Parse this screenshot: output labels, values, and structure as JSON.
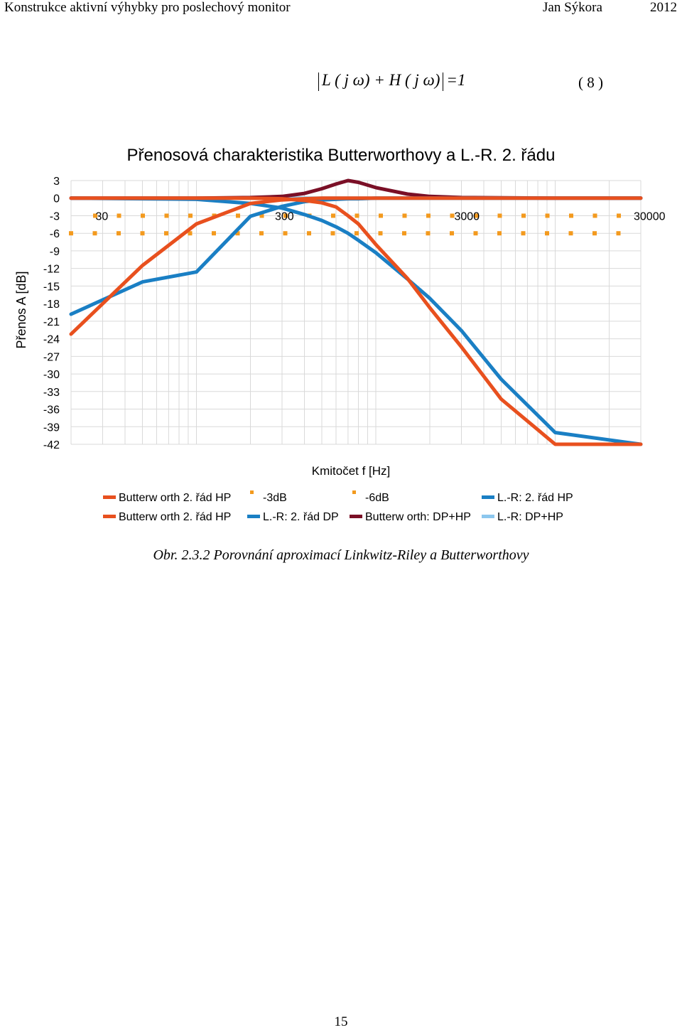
{
  "header": {
    "title": "Konstrukce aktivní výhybky pro poslechový monitor",
    "author": "Jan Sýkora",
    "year": "2012"
  },
  "equation": {
    "text": "L ( j ω) + H ( j ω) = 1",
    "lhs_l": "L ( j ω) + H ( j ω)",
    "rhs": "=1",
    "number": "( 8 )"
  },
  "chart_data": {
    "type": "line",
    "title": "Přenosová charakteristika Butterworthovy a L.-R. 2. řádu",
    "xlabel": "Kmitočet f [Hz]",
    "ylabel": "Přenos A [dB]",
    "xscale": "log",
    "xlim": [
      20,
      30000
    ],
    "ylim": [
      -42,
      3
    ],
    "yticks": [
      "3",
      "0",
      "-3",
      "-6",
      "-9",
      "-12",
      "-15",
      "-18",
      "-21",
      "-24",
      "-27",
      "-30",
      "-33",
      "-36",
      "-39",
      "-42"
    ],
    "xticks": [
      "30",
      "300",
      "3000",
      "30000"
    ],
    "grid": true,
    "crossover_hz": 700,
    "series": [
      {
        "name": "Butterw orth 2. řád HP",
        "color": "#e8501e",
        "style": "solid",
        "x": [
          20,
          50,
          100,
          200,
          300,
          400,
          500,
          600,
          700,
          800,
          1000,
          1500,
          2000,
          3000,
          5000,
          10000,
          30000
        ],
        "values": [
          -23.2,
          -11.5,
          -4.4,
          -0.9,
          -0.3,
          -0.1,
          0,
          0,
          0,
          0,
          0,
          0,
          0,
          0,
          0,
          0,
          0
        ]
      },
      {
        "name": "-3dB",
        "color": "#f39a1e",
        "style": "dotted",
        "x": [
          20,
          30000
        ],
        "values": [
          -3,
          -3
        ]
      },
      {
        "name": "-6dB",
        "color": "#f39a1e",
        "style": "dotted",
        "x": [
          20,
          30000
        ],
        "values": [
          -6,
          -6
        ]
      },
      {
        "name": "L.-R: 2. řád HP",
        "color": "#1a7fc4",
        "style": "solid",
        "x": [
          20,
          50,
          100,
          200,
          300,
          400,
          500,
          600,
          700,
          800,
          1000,
          1500,
          2000,
          3000,
          5000,
          10000,
          30000
        ],
        "values": [
          -19.8,
          -14.3,
          -12.6,
          -3.1,
          -1.4,
          -0.6,
          -0.3,
          -0.2,
          -0.1,
          -0.1,
          0,
          0,
          0,
          0,
          0,
          0,
          0
        ]
      },
      {
        "name": "Butterw orth 2. řád HP",
        "color": "#e8501e",
        "style": "solid",
        "x": [
          20,
          50,
          100,
          200,
          300,
          400,
          500,
          600,
          700,
          800,
          1000,
          1500,
          2000,
          3000,
          5000,
          10000,
          30000
        ],
        "values": [
          0,
          0,
          0,
          0,
          -0.1,
          -0.4,
          -0.8,
          -1.5,
          -3,
          -4.4,
          -7.9,
          -13.7,
          -18.7,
          -25.4,
          -34.3,
          -42,
          -42
        ]
      },
      {
        "name": "L.-R: 2. řád DP",
        "color": "#1a7fc4",
        "style": "solid",
        "x": [
          20,
          50,
          100,
          200,
          300,
          400,
          500,
          600,
          700,
          800,
          1000,
          1500,
          2000,
          3000,
          5000,
          10000,
          30000
        ],
        "values": [
          0,
          -0.1,
          -0.2,
          -0.9,
          -1.7,
          -2.8,
          -3.8,
          -4.9,
          -6,
          -7.2,
          -9.3,
          -13.8,
          -17.1,
          -22.6,
          -30.9,
          -40,
          -42
        ]
      },
      {
        "name": "Butterw orth: DP+HP",
        "color": "#7a0f26",
        "style": "solid",
        "x": [
          20,
          100,
          200,
          300,
          400,
          500,
          600,
          700,
          800,
          1000,
          1500,
          2000,
          3000,
          10000,
          30000
        ],
        "values": [
          0,
          0,
          0.1,
          0.3,
          0.8,
          1.6,
          2.4,
          3,
          2.7,
          1.8,
          0.7,
          0.3,
          0.1,
          0,
          0
        ]
      },
      {
        "name": "L.-R: DP+HP",
        "color": "#8cc7ee",
        "style": "solid",
        "x": [
          20,
          30000
        ],
        "values": [
          0,
          0
        ]
      }
    ],
    "legend": [
      "Butterw orth 2. řád HP",
      "-3dB",
      "-6dB",
      "L.-R: 2. řád HP",
      "Butterw orth 2. řád HP",
      "L.-R: 2. řád DP",
      "Butterw orth: DP+HP",
      "L.-R: DP+HP"
    ]
  },
  "caption": "Obr. 2.3.2  Porovnání aproximací Linkwitz-Riley a Butterworthovy",
  "page_number": "15"
}
